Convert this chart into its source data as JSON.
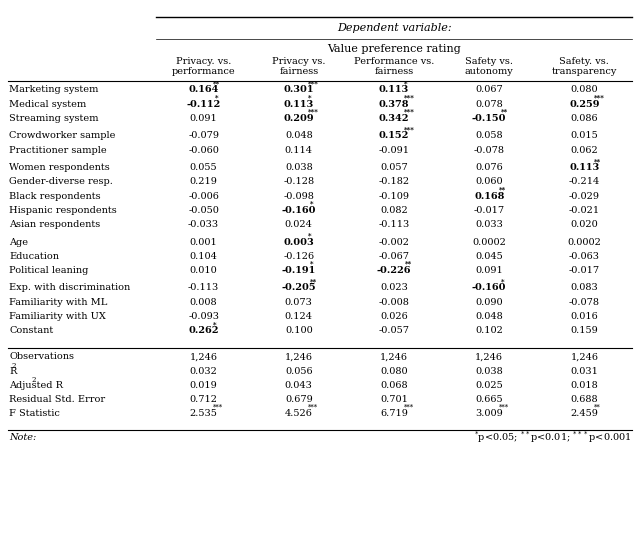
{
  "title_italic": "Dependent variable:",
  "subtitle": "Value preference rating",
  "col_headers": [
    [
      "Privacy. vs.",
      "performance"
    ],
    [
      "Privacy vs.",
      "fairness"
    ],
    [
      "Performance vs.",
      "fairness"
    ],
    [
      "Safety vs.",
      "autonomy"
    ],
    [
      "Safety. vs.",
      "transparency"
    ]
  ],
  "row_groups": [
    [
      [
        "Marketing system",
        "bold:0.164:**",
        "bold:0.301:***",
        "bold:0.113:*",
        "0.067",
        "0.080"
      ],
      [
        "Medical system",
        "bold:-0.112:*",
        "bold:0.113:*",
        "bold:0.378:***",
        "0.078",
        "bold:0.259:***"
      ],
      [
        "Streaming system",
        "0.091",
        "bold:0.209:***",
        "bold:0.342:***",
        "bold:-0.150:**",
        "0.086"
      ]
    ],
    [
      [
        "Crowdworker sample",
        "-0.079",
        "0.048",
        "bold:0.152:***",
        "0.058",
        "0.015"
      ],
      [
        "Practitioner sample",
        "-0.060",
        "0.114",
        "-0.091",
        "-0.078",
        "0.062"
      ]
    ],
    [
      [
        "Women respondents",
        "0.055",
        "0.038",
        "0.057",
        "0.076",
        "bold:0.113:**"
      ],
      [
        "Gender-diverse resp.",
        "0.219",
        "-0.128",
        "-0.182",
        "0.060",
        "-0.214"
      ],
      [
        "Black respondents",
        "-0.006",
        "-0.098",
        "-0.109",
        "bold:0.168:**",
        "-0.029"
      ],
      [
        "Hispanic respondents",
        "-0.050",
        "bold:-0.160:*",
        "0.082",
        "-0.017",
        "-0.021"
      ],
      [
        "Asian respondents",
        "-0.033",
        "0.024",
        "-0.113",
        "0.033",
        "0.020"
      ]
    ],
    [
      [
        "Age",
        "0.001",
        "bold:0.003:*",
        "-0.002",
        "0.0002",
        "0.0002"
      ],
      [
        "Education",
        "0.104",
        "-0.126",
        "-0.067",
        "0.045",
        "-0.063"
      ],
      [
        "Political leaning",
        "0.010",
        "bold:-0.191:*",
        "bold:-0.226:**",
        "0.091",
        "-0.017"
      ]
    ],
    [
      [
        "Exp. with discrimination",
        "-0.113",
        "bold:-0.205:**",
        "0.023",
        "bold:-0.160:*",
        "0.083"
      ],
      [
        "Familiarity with ML",
        "0.008",
        "0.073",
        "-0.008",
        "0.090",
        "-0.078"
      ],
      [
        "Familiarity with UX",
        "-0.093",
        "0.124",
        "0.026",
        "0.048",
        "0.016"
      ],
      [
        "Constant",
        "bold:0.262:*",
        "0.100",
        "-0.057",
        "0.102",
        "0.159"
      ]
    ]
  ],
  "stats_rows": [
    [
      "Observations",
      "1,246",
      "1,246",
      "1,246",
      "1,246",
      "1,246"
    ],
    [
      "R2",
      "0.032",
      "0.056",
      "0.080",
      "0.038",
      "0.031"
    ],
    [
      "Adjusted R2",
      "0.019",
      "0.043",
      "0.068",
      "0.025",
      "0.018"
    ],
    [
      "Residual Std. Error",
      "0.712",
      "0.679",
      "0.701",
      "0.665",
      "0.688"
    ],
    [
      "F Statistic",
      "plain:2.535:***",
      "plain:4.526:***",
      "plain:6.719:***",
      "plain:3.009:***",
      "plain:2.459:**"
    ]
  ],
  "note_left": "Note:",
  "note_right": "*p<0.05; **p<0.01; ***p<0.001",
  "bg_color": "#ffffff"
}
